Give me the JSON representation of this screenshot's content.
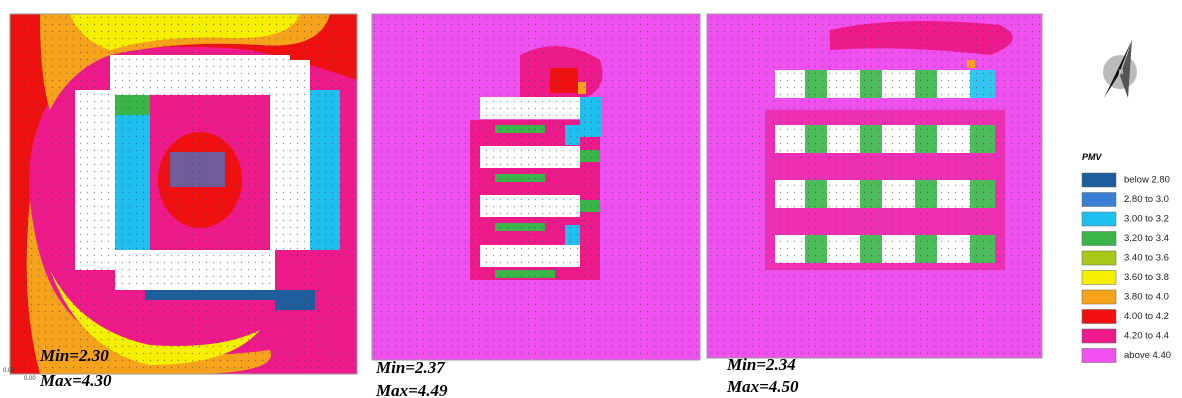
{
  "panels": [
    {
      "min_label": "Min=2.30",
      "max_label": "Max=4.30"
    },
    {
      "min_label": "Min=2.37",
      "max_label": "Max=4.49"
    },
    {
      "min_label": "Min=2.34",
      "max_label": "Max=4.50"
    }
  ],
  "axis_origin": [
    "0.00",
    "0.00"
  ],
  "north_label": "N",
  "legend": {
    "title": "PMV",
    "items": [
      {
        "label": "below 2.80",
        "color": "#1f5e9c"
      },
      {
        "label": "2.80 to 3.0",
        "color": "#3b7fd4"
      },
      {
        "label": "3.00 to 3.2",
        "color": "#1ec0f0"
      },
      {
        "label": "3.20 to 3.4",
        "color": "#39b54a"
      },
      {
        "label": "3.40 to 3.6",
        "color": "#a6c918"
      },
      {
        "label": "3.60 to 3.8",
        "color": "#f5f000"
      },
      {
        "label": "3.80 to 4.0",
        "color": "#f7a21b"
      },
      {
        "label": "4.00 to 4.2",
        "color": "#f01010"
      },
      {
        "label": "4.20 to 4.4",
        "color": "#ee1a8c"
      },
      {
        "label": "above 4.40",
        "color": "#f050f0"
      }
    ]
  }
}
